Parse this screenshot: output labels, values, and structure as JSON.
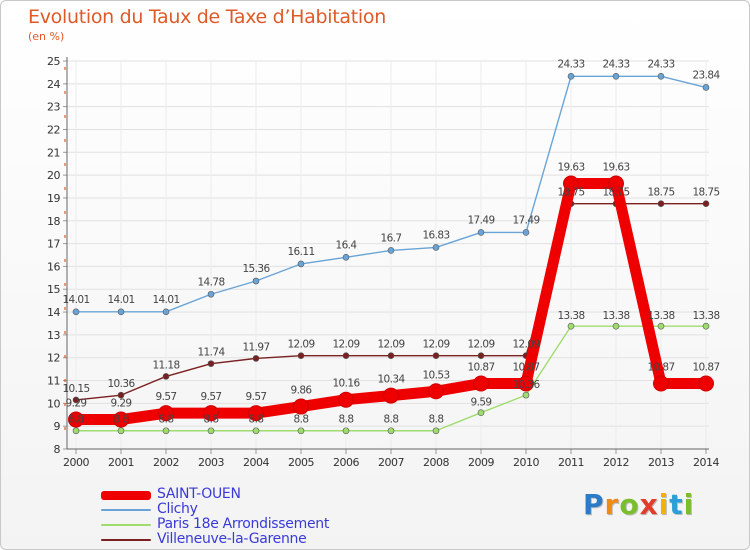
{
  "chart_data": {
    "type": "line",
    "title": "Evolution du Taux de Taxe d’Habitation",
    "subtitle": "(en %)",
    "xlabel": "",
    "ylabel": "",
    "x": [
      "2000",
      "2001",
      "2002",
      "2003",
      "2004",
      "2005",
      "2006",
      "2007",
      "2008",
      "2009",
      "2010",
      "2011",
      "2012",
      "2013",
      "2014"
    ],
    "ylim": [
      8,
      25
    ],
    "yticks": [
      8,
      9,
      10,
      11,
      12,
      13,
      14,
      15,
      16,
      17,
      18,
      19,
      20,
      21,
      22,
      23,
      24,
      25
    ],
    "grid": true,
    "legend_position": "bottom-left",
    "series": [
      {
        "name": "SAINT-OUEN",
        "color": "#ee0000",
        "values": [
          9.29,
          9.29,
          9.57,
          9.57,
          9.57,
          9.86,
          10.16,
          10.34,
          10.53,
          10.87,
          10.87,
          19.63,
          19.63,
          10.87,
          10.87
        ],
        "labels": [
          "9.29",
          "9.29",
          "9.57",
          "9.57",
          "9.57",
          "9.86",
          "10.16",
          "10.34",
          "10.53",
          "10.87",
          "10.87",
          "19.63",
          "19.63",
          "10.87",
          "10.87"
        ]
      },
      {
        "name": "Clichy",
        "color": "#6aa4d6",
        "values": [
          14.01,
          14.01,
          14.01,
          14.78,
          15.36,
          16.11,
          16.4,
          16.7,
          16.83,
          17.49,
          17.49,
          24.33,
          24.33,
          24.33,
          23.84
        ],
        "labels": [
          "14.01",
          "14.01",
          "14.01",
          "14.78",
          "15.36",
          "16.11",
          "16.4",
          "16.7",
          "16.83",
          "17.49",
          "17.49",
          "24.33",
          "24.33",
          "24.33",
          "23.84"
        ]
      },
      {
        "name": "Paris 18e  Arrondissement",
        "color": "#9fdc6e",
        "values": [
          8.8,
          8.8,
          8.8,
          8.8,
          8.8,
          8.8,
          8.8,
          8.8,
          8.8,
          9.59,
          10.36,
          13.38,
          13.38,
          13.38,
          13.38
        ],
        "labels": [
          "8.8",
          "8.8",
          "8.8",
          "8.8",
          "8.8",
          "8.8",
          "8.8",
          "8.8",
          "8.8",
          "9.59",
          "10.36",
          "13.38",
          "13.38",
          "13.38",
          "13.38"
        ]
      },
      {
        "name": "Villeneuve-la-Garenne",
        "color": "#7a2020",
        "values": [
          10.15,
          10.36,
          11.18,
          11.74,
          11.97,
          12.09,
          12.09,
          12.09,
          12.09,
          12.09,
          12.09,
          18.75,
          18.75,
          18.75,
          18.75
        ],
        "labels": [
          "10.15",
          "10.36",
          "11.18",
          "11.74",
          "11.97",
          "12.09",
          "12.09",
          "12.09",
          "12.09",
          "12.09",
          "12.09",
          "18.75",
          "18.75",
          "18.75",
          "18.75"
        ]
      }
    ]
  },
  "legend": [
    {
      "label": "SAINT-OUEN",
      "color": "#ee0000"
    },
    {
      "label": "Clichy",
      "color": "#6aa4d6"
    },
    {
      "label": "Paris 18e  Arrondissement",
      "color": "#9fdc6e"
    },
    {
      "label": "Villeneuve-la-Garenne",
      "color": "#7a2020"
    }
  ],
  "logo": {
    "letters": [
      "P",
      "r",
      "o",
      "x",
      "i",
      "t",
      "i"
    ],
    "colors": [
      "#2b7bc6",
      "#f08a12",
      "#7abf2a",
      "#e23c2a",
      "#f0b400",
      "#2b9fd6",
      "#7abf2a"
    ]
  }
}
